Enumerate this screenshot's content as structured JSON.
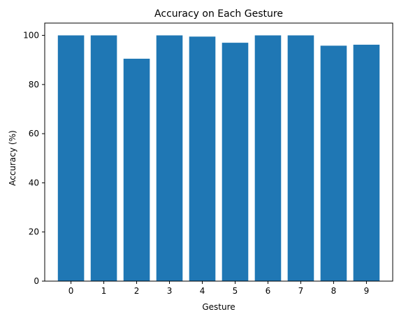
{
  "chart_data": {
    "type": "bar",
    "title": "Accuracy on Each Gesture",
    "xlabel": "Gesture",
    "ylabel": "Accuracy (%)",
    "categories": [
      "0",
      "1",
      "2",
      "3",
      "4",
      "5",
      "6",
      "7",
      "8",
      "9"
    ],
    "values": [
      100,
      100,
      90.5,
      100,
      99.5,
      97,
      100,
      100,
      95.8,
      96.2
    ],
    "ylim": [
      0,
      105
    ],
    "yticks": [
      0,
      20,
      40,
      60,
      80,
      100
    ],
    "bar_color": "#1f77b4",
    "grid": false,
    "legend": "none"
  }
}
